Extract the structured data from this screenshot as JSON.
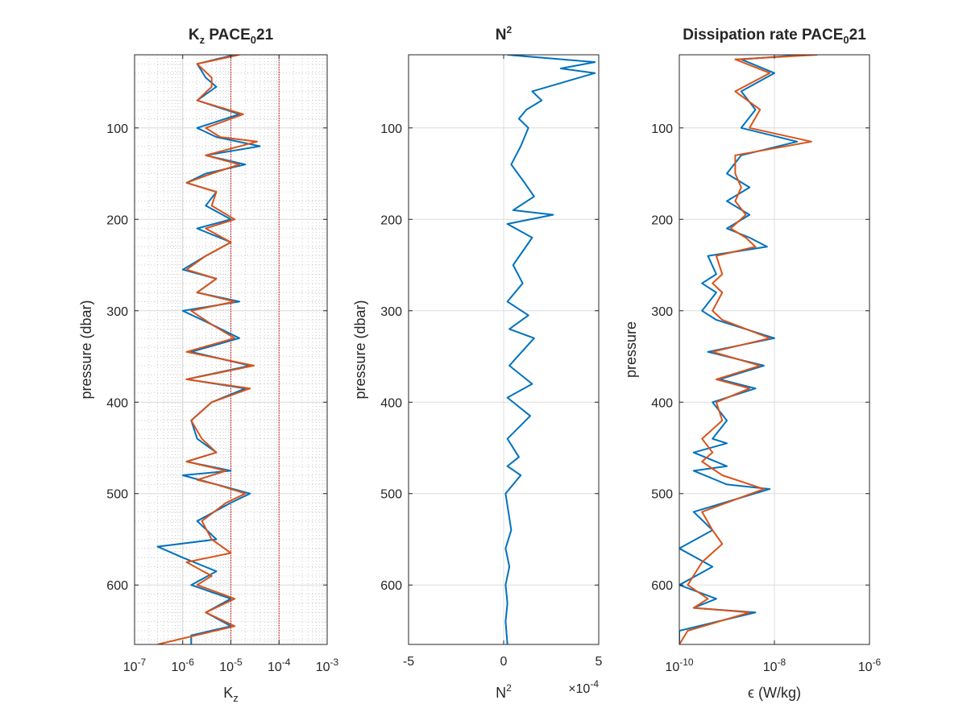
{
  "chart_data": [
    {
      "type": "line",
      "title": "K",
      "title_sub": "z",
      "title_rest": " PACE",
      "title_sub2": "0",
      "title_tail": "21",
      "xlabel": "K",
      "xlabel_sub": "z",
      "ylabel": "pressure (dbar)",
      "xscale": "log",
      "xlim": [
        1e-07,
        0.001
      ],
      "ylim": [
        20,
        665
      ],
      "y_reversed": true,
      "grid": "on (major + minor, dotted)",
      "reference_lines": [
        1e-05,
        0.0001
      ],
      "xticks": [
        {
          "base": "10",
          "exp": "-7"
        },
        {
          "base": "10",
          "exp": "-6"
        },
        {
          "base": "10",
          "exp": "-5"
        },
        {
          "base": "10",
          "exp": "-4"
        },
        {
          "base": "10",
          "exp": "-3"
        }
      ],
      "yticks": [
        "100",
        "200",
        "300",
        "400",
        "500",
        "600"
      ],
      "series": [
        {
          "color": "#0072BD",
          "points": [
            [
              1.2e-05,
              20
            ],
            [
              2e-06,
              30
            ],
            [
              3e-06,
              45
            ],
            [
              5e-06,
              55
            ],
            [
              2e-06,
              70
            ],
            [
              1.5e-05,
              85
            ],
            [
              2e-06,
              100
            ],
            [
              5e-06,
              110
            ],
            [
              4e-05,
              120
            ],
            [
              3e-06,
              130
            ],
            [
              2e-05,
              140
            ],
            [
              3e-06,
              150
            ],
            [
              1.2e-06,
              160
            ],
            [
              5e-06,
              170
            ],
            [
              3e-06,
              185
            ],
            [
              1e-05,
              200
            ],
            [
              2e-06,
              210
            ],
            [
              1e-05,
              225
            ],
            [
              3e-06,
              240
            ],
            [
              1e-06,
              255
            ],
            [
              5e-06,
              265
            ],
            [
              2e-06,
              280
            ],
            [
              1.5e-05,
              290
            ],
            [
              1e-06,
              300
            ],
            [
              4e-06,
              315
            ],
            [
              1.5e-05,
              330
            ],
            [
              1.5e-06,
              345
            ],
            [
              2.5e-05,
              360
            ],
            [
              1.2e-06,
              375
            ],
            [
              2e-05,
              385
            ],
            [
              4e-06,
              400
            ],
            [
              1.5e-06,
              420
            ],
            [
              2e-06,
              440
            ],
            [
              5e-06,
              455
            ],
            [
              1.2e-06,
              465
            ],
            [
              1e-05,
              475
            ],
            [
              1e-06,
              480
            ],
            [
              5e-06,
              490
            ],
            [
              2.5e-05,
              500
            ],
            [
              1e-05,
              510
            ],
            [
              2e-06,
              530
            ],
            [
              5e-06,
              550
            ],
            [
              3e-07,
              558
            ],
            [
              1e-06,
              570
            ],
            [
              5e-06,
              585
            ],
            [
              1.5e-06,
              600
            ],
            [
              1e-05,
              615
            ],
            [
              3e-06,
              630
            ],
            [
              1e-05,
              645
            ],
            [
              1.5e-06,
              655
            ],
            [
              1.5e-06,
              665
            ]
          ]
        },
        {
          "color": "#D95319",
          "points": [
            [
              1.5e-05,
              20
            ],
            [
              2e-06,
              30
            ],
            [
              4e-06,
              45
            ],
            [
              4e-06,
              55
            ],
            [
              2e-06,
              70
            ],
            [
              1.8e-05,
              85
            ],
            [
              3e-06,
              100
            ],
            [
              6e-06,
              110
            ],
            [
              3.5e-05,
              115
            ],
            [
              3e-06,
              130
            ],
            [
              1.5e-05,
              140
            ],
            [
              4e-06,
              150
            ],
            [
              1.2e-06,
              160
            ],
            [
              5e-06,
              170
            ],
            [
              4e-06,
              185
            ],
            [
              1.2e-05,
              200
            ],
            [
              3e-06,
              210
            ],
            [
              1e-05,
              225
            ],
            [
              3e-06,
              240
            ],
            [
              1.2e-06,
              255
            ],
            [
              5e-06,
              265
            ],
            [
              2e-06,
              280
            ],
            [
              1.2e-05,
              290
            ],
            [
              1.5e-06,
              300
            ],
            [
              4e-06,
              315
            ],
            [
              1.2e-05,
              330
            ],
            [
              1.2e-06,
              345
            ],
            [
              3e-05,
              360
            ],
            [
              1.2e-06,
              375
            ],
            [
              2.5e-05,
              385
            ],
            [
              4e-06,
              400
            ],
            [
              1.5e-06,
              420
            ],
            [
              2.5e-06,
              440
            ],
            [
              5e-06,
              455
            ],
            [
              1.2e-06,
              465
            ],
            [
              8e-06,
              475
            ],
            [
              2e-06,
              485
            ],
            [
              5e-06,
              490
            ],
            [
              2e-05,
              500
            ],
            [
              8e-06,
              510
            ],
            [
              2.5e-06,
              530
            ],
            [
              4e-06,
              550
            ],
            [
              1e-05,
              565
            ],
            [
              1.2e-06,
              575
            ],
            [
              4e-06,
              590
            ],
            [
              2e-06,
              600
            ],
            [
              1.2e-05,
              615
            ],
            [
              3e-06,
              630
            ],
            [
              1.2e-05,
              645
            ],
            [
              3e-07,
              665
            ]
          ]
        }
      ]
    },
    {
      "type": "line",
      "title": "N",
      "title_sup": "2",
      "xlabel": "N",
      "xlabel_sup": "2",
      "ylabel": "pressure (dbar)",
      "xlim": [
        -5,
        5
      ],
      "x_multiplier_base": "×10",
      "x_multiplier_exp": "-4",
      "ylim": [
        20,
        665
      ],
      "y_reversed": true,
      "grid": "on",
      "xticks": [
        "-5",
        "0",
        "5"
      ],
      "yticks": [
        "100",
        "200",
        "300",
        "400",
        "500",
        "600"
      ],
      "series": [
        {
          "color": "#0072BD",
          "points": [
            [
              0.2,
              20
            ],
            [
              4.8,
              28
            ],
            [
              3,
              35
            ],
            [
              4.8,
              40
            ],
            [
              1.5,
              60
            ],
            [
              2,
              70
            ],
            [
              1.2,
              80
            ],
            [
              0.8,
              90
            ],
            [
              1.3,
              100
            ],
            [
              0.9,
              120
            ],
            [
              0.4,
              140
            ],
            [
              1.1,
              160
            ],
            [
              1.6,
              175
            ],
            [
              0.5,
              190
            ],
            [
              2.6,
              195
            ],
            [
              0.2,
              205
            ],
            [
              1.5,
              220
            ],
            [
              0.5,
              250
            ],
            [
              1,
              270
            ],
            [
              0.2,
              290
            ],
            [
              1.3,
              305
            ],
            [
              0.3,
              320
            ],
            [
              1.6,
              330
            ],
            [
              0.3,
              360
            ],
            [
              1.5,
              380
            ],
            [
              0.2,
              395
            ],
            [
              1.4,
              415
            ],
            [
              0.2,
              440
            ],
            [
              0.8,
              460
            ],
            [
              0.2,
              470
            ],
            [
              0.9,
              480
            ],
            [
              0.1,
              500
            ],
            [
              0.4,
              540
            ],
            [
              0.1,
              560
            ],
            [
              0.3,
              580
            ],
            [
              0.1,
              600
            ],
            [
              0.2,
              620
            ],
            [
              0.1,
              640
            ],
            [
              0.2,
              665
            ]
          ]
        }
      ]
    },
    {
      "type": "line",
      "title": "Dissipation rate PACE",
      "title_sub": "0",
      "title_tail": "21",
      "xlabel": "ϵ (W/kg)",
      "ylabel": "pressure",
      "xscale": "log",
      "xlim": [
        1e-10,
        1e-06
      ],
      "ylim": [
        20,
        665
      ],
      "y_reversed": true,
      "grid": "on",
      "xticks": [
        {
          "base": "10",
          "exp": "-10"
        },
        {
          "base": "10",
          "exp": "-8"
        },
        {
          "base": "10",
          "exp": "-6"
        }
      ],
      "yticks": [
        "100",
        "200",
        "300",
        "400",
        "500",
        "600"
      ],
      "series": [
        {
          "color": "#0072BD",
          "points": [
            [
              4e-08,
              20
            ],
            [
              2e-09,
              25
            ],
            [
              1e-08,
              40
            ],
            [
              2e-09,
              60
            ],
            [
              4e-09,
              80
            ],
            [
              2e-09,
              100
            ],
            [
              3e-08,
              115
            ],
            [
              2e-09,
              130
            ],
            [
              1e-09,
              150
            ],
            [
              3e-09,
              165
            ],
            [
              1e-09,
              180
            ],
            [
              3e-09,
              195
            ],
            [
              1e-09,
              210
            ],
            [
              3e-09,
              220
            ],
            [
              7e-09,
              230
            ],
            [
              4e-10,
              240
            ],
            [
              6e-10,
              260
            ],
            [
              3e-10,
              270
            ],
            [
              6e-10,
              280
            ],
            [
              3e-10,
              300
            ],
            [
              6e-10,
              310
            ],
            [
              1e-08,
              330
            ],
            [
              4e-10,
              345
            ],
            [
              6e-09,
              360
            ],
            [
              7e-10,
              375
            ],
            [
              4e-09,
              385
            ],
            [
              5e-10,
              400
            ],
            [
              1e-09,
              420
            ],
            [
              5e-10,
              440
            ],
            [
              1e-09,
              445
            ],
            [
              2e-10,
              455
            ],
            [
              1e-09,
              470
            ],
            [
              2e-10,
              475
            ],
            [
              1e-09,
              490
            ],
            [
              8e-09,
              495
            ],
            [
              2e-10,
              520
            ],
            [
              5e-10,
              540
            ],
            [
              1e-10,
              560
            ],
            [
              5e-10,
              580
            ],
            [
              1e-10,
              600
            ],
            [
              6e-10,
              615
            ],
            [
              2e-10,
              625
            ],
            [
              4e-09,
              630
            ],
            [
              1e-10,
              650
            ],
            [
              1e-10,
              665
            ]
          ]
        },
        {
          "color": "#D95319",
          "points": [
            [
              8e-08,
              20
            ],
            [
              1.5e-09,
              25
            ],
            [
              8e-09,
              40
            ],
            [
              1.5e-09,
              60
            ],
            [
              5e-09,
              80
            ],
            [
              3e-09,
              100
            ],
            [
              6e-08,
              115
            ],
            [
              1.5e-09,
              130
            ],
            [
              1.5e-09,
              150
            ],
            [
              2e-09,
              165
            ],
            [
              1.5e-09,
              180
            ],
            [
              2.5e-09,
              195
            ],
            [
              1.2e-09,
              210
            ],
            [
              2.5e-09,
              220
            ],
            [
              4e-09,
              230
            ],
            [
              6e-10,
              240
            ],
            [
              8e-10,
              260
            ],
            [
              5e-10,
              270
            ],
            [
              8e-10,
              280
            ],
            [
              5e-10,
              300
            ],
            [
              8e-10,
              310
            ],
            [
              8e-09,
              330
            ],
            [
              5e-10,
              345
            ],
            [
              5e-09,
              360
            ],
            [
              6e-10,
              375
            ],
            [
              3e-09,
              385
            ],
            [
              6e-10,
              400
            ],
            [
              8e-10,
              420
            ],
            [
              3e-10,
              440
            ],
            [
              5e-10,
              455
            ],
            [
              3e-10,
              465
            ],
            [
              8e-10,
              480
            ],
            [
              6e-09,
              495
            ],
            [
              3e-10,
              520
            ],
            [
              5e-10,
              540
            ],
            [
              8e-10,
              555
            ],
            [
              3e-10,
              575
            ],
            [
              1.5e-10,
              600
            ],
            [
              4e-10,
              615
            ],
            [
              2e-10,
              625
            ],
            [
              3e-09,
              630
            ],
            [
              1.5e-10,
              650
            ],
            [
              1e-10,
              665
            ]
          ]
        }
      ]
    }
  ]
}
